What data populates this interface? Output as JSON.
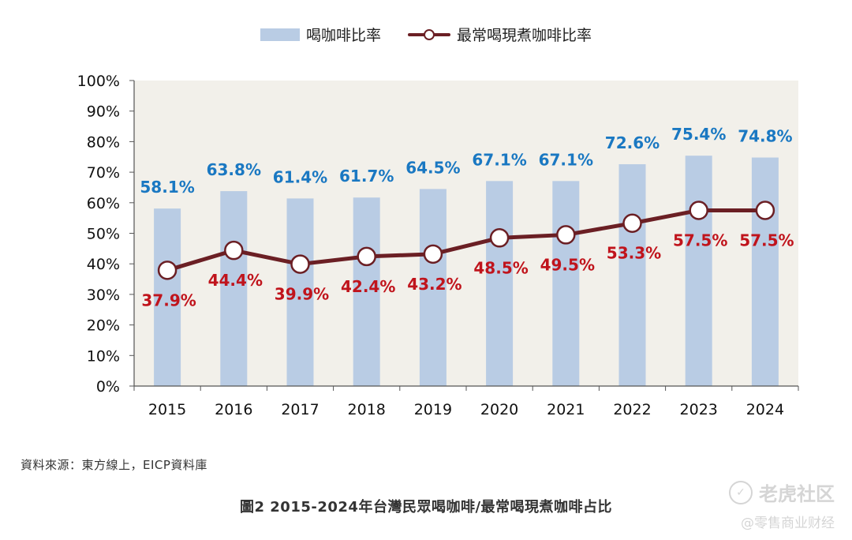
{
  "legend": {
    "bar_label": "喝咖啡比率",
    "line_label": "最常喝現煮咖啡比率"
  },
  "source": "資料來源：東方線上，EICP資料庫",
  "caption": "圖2  2015-2024年台灣民眾喝咖啡/最常喝現煮咖啡占比",
  "watermark": {
    "main": "老虎社区",
    "sub": "@零售商业财经"
  },
  "colors": {
    "bar": "#b9cce4",
    "bar_label": "#1a78c2",
    "line": "#6b1f24",
    "line_label": "#c0141c",
    "plot_bg": "#f2f0ea"
  },
  "chart_data": {
    "type": "bar",
    "categories": [
      "2015",
      "2016",
      "2017",
      "2018",
      "2019",
      "2020",
      "2021",
      "2022",
      "2023",
      "2024"
    ],
    "series": [
      {
        "name": "喝咖啡比率",
        "type": "bar",
        "values": [
          58.1,
          63.8,
          61.4,
          61.7,
          64.5,
          67.1,
          67.1,
          72.6,
          75.4,
          74.8
        ],
        "labels": [
          "58.1%",
          "63.8%",
          "61.4%",
          "61.7%",
          "64.5%",
          "67.1%",
          "67.1%",
          "72.6%",
          "75.4%",
          "74.8%"
        ]
      },
      {
        "name": "最常喝現煮咖啡比率",
        "type": "line",
        "values": [
          37.9,
          44.4,
          39.9,
          42.4,
          43.2,
          48.5,
          49.5,
          53.3,
          57.5,
          57.5
        ],
        "labels": [
          "37.9%",
          "44.4%",
          "39.9%",
          "42.4%",
          "43.2%",
          "48.5%",
          "49.5%",
          "53.3%",
          "57.5%",
          "57.5%"
        ]
      }
    ],
    "ylim": [
      0,
      100
    ],
    "yticks": [
      "0%",
      "10%",
      "20%",
      "30%",
      "40%",
      "50%",
      "60%",
      "70%",
      "80%",
      "90%",
      "100%"
    ],
    "grid": false,
    "legend_position": "top-center"
  }
}
